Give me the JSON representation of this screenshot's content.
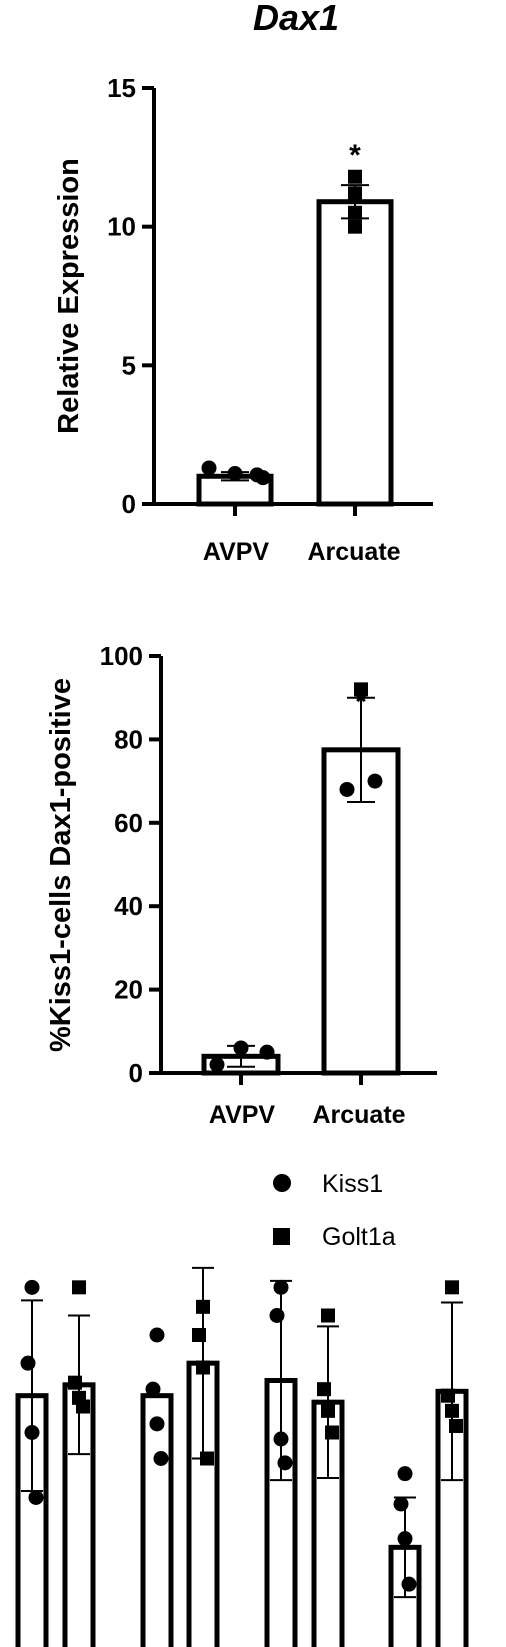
{
  "chart_data": [
    {
      "type": "bar",
      "title": "Dax1",
      "ylabel": "Relative Expression",
      "xlabel": "",
      "categories": [
        "AVPV",
        "Arcuate"
      ],
      "ylim": [
        0,
        15
      ],
      "yticks": [
        0,
        5,
        10,
        15
      ],
      "values": [
        1.0,
        10.9
      ],
      "error": [
        0.15,
        0.6
      ],
      "marker": [
        "circle",
        "square"
      ],
      "points": [
        [
          1.3,
          1.1,
          1.05,
          0.95
        ],
        [
          11.8,
          11.2,
          10.5,
          10.0
        ]
      ],
      "significance": [
        null,
        "*"
      ]
    },
    {
      "type": "bar",
      "title": "",
      "ylabel": "%Kiss1-cells Dax1-positive",
      "xlabel": "",
      "categories": [
        "AVPV",
        "Arcuate"
      ],
      "ylim": [
        0,
        100
      ],
      "yticks": [
        0,
        20,
        40,
        60,
        80,
        100
      ],
      "values": [
        4.0,
        77.5
      ],
      "error": [
        2.5,
        12.5
      ],
      "marker": [
        "circle",
        "circle"
      ],
      "points": [
        [
          2.0,
          6.0,
          5.0
        ],
        [
          92.0,
          68.0,
          70.0
        ]
      ],
      "marker_override": [
        null,
        "square"
      ],
      "significance": [
        null,
        "*"
      ]
    },
    {
      "type": "bar",
      "title": "",
      "ylabel": "",
      "xlabel": "",
      "legend": [
        {
          "name": "Kiss1",
          "marker": "circle"
        },
        {
          "name": "Golt1a",
          "marker": "square"
        }
      ],
      "legend_position": "top-right",
      "ylim": [
        0,
        1.8
      ],
      "groups": [
        {
          "kiss1": {
            "value": 1.22,
            "error": 0.44,
            "points": [
              1.72,
              1.37,
              1.05,
              0.75
            ]
          },
          "golt1a": {
            "value": 1.27,
            "error": 0.32,
            "points": [
              1.72,
              1.28,
              1.21,
              1.17
            ]
          },
          "significance": [
            null,
            null
          ]
        },
        {
          "kiss1": {
            "value": 1.22,
            "error": 0.0,
            "points": [
              1.5,
              1.25,
              1.09,
              0.93
            ]
          },
          "golt1a": {
            "value": 1.37,
            "error": 0.44,
            "points": [
              1.63,
              1.5,
              1.35,
              0.93
            ]
          },
          "significance": [
            null,
            null
          ]
        },
        {
          "kiss1": {
            "value": 1.29,
            "error": 0.46,
            "points": [
              1.72,
              1.59,
              1.02,
              0.91
            ]
          },
          "golt1a": {
            "value": 1.19,
            "error": 0.35,
            "points": [
              1.59,
              1.25,
              1.15,
              1.05
            ]
          },
          "significance": [
            null,
            null
          ]
        },
        {
          "kiss1": {
            "value": 0.52,
            "error": 0.23,
            "points": [
              0.86,
              0.72,
              0.56,
              0.35
            ]
          },
          "golt1a": {
            "value": 1.24,
            "error": 0.41,
            "points": [
              1.72,
              1.22,
              1.15,
              1.08
            ]
          },
          "significance": [
            "*",
            null
          ]
        }
      ]
    }
  ]
}
